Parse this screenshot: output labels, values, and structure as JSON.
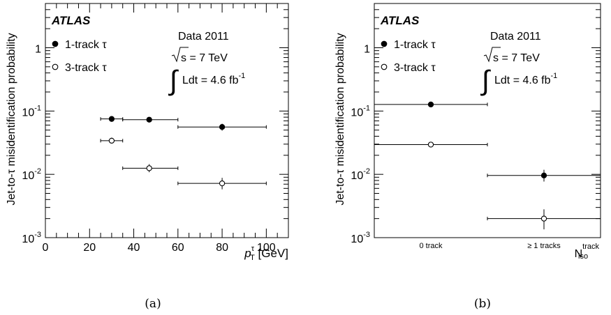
{
  "chart_data": [
    {
      "type": "scatter",
      "caption": "(a)",
      "brand": "ATLAS",
      "ylabel": "Jet-to-τ misidentification probability",
      "xlabel": {
        "main": "p",
        "sup": "τ",
        "sub": "T",
        "unit": " [GeV]"
      },
      "xlim": [
        0,
        110
      ],
      "ylim": [
        0.001,
        5
      ],
      "yscale": "log",
      "xticks": [
        "0",
        "20",
        "40",
        "60",
        "80",
        "100"
      ],
      "yticks": [
        {
          "base": "10",
          "exp": "-3"
        },
        {
          "base": "10",
          "exp": "-2"
        },
        {
          "base": "10",
          "exp": "-1"
        },
        {
          "base": "1",
          "exp": ""
        }
      ],
      "legend": {
        "placement": "top-left",
        "entries": [
          "1-track τ",
          "3-track τ"
        ]
      },
      "info": {
        "line1": "Data 2011",
        "sqrt_s": "s = 7 TeV",
        "lumi": "Ldt = 4.6 fb",
        "lumi_exp": "-1"
      },
      "series": [
        {
          "name": "1-track τ",
          "marker": "filled",
          "points": [
            {
              "x": 30,
              "xlo": 25,
              "xhi": 35,
              "y": 0.075,
              "ylo": 0.071,
              "yhi": 0.079
            },
            {
              "x": 47,
              "xlo": 35,
              "xhi": 60,
              "y": 0.073,
              "ylo": 0.069,
              "yhi": 0.077
            },
            {
              "x": 80,
              "xlo": 60,
              "xhi": 100,
              "y": 0.056,
              "ylo": 0.049,
              "yhi": 0.063
            }
          ]
        },
        {
          "name": "3-track τ",
          "marker": "open",
          "points": [
            {
              "x": 30,
              "xlo": 25,
              "xhi": 35,
              "y": 0.034,
              "ylo": 0.031,
              "yhi": 0.038
            },
            {
              "x": 47,
              "xlo": 35,
              "xhi": 60,
              "y": 0.0125,
              "ylo": 0.0108,
              "yhi": 0.0145
            },
            {
              "x": 80,
              "xlo": 60,
              "xhi": 100,
              "y": 0.0072,
              "ylo": 0.0058,
              "yhi": 0.0088
            }
          ]
        }
      ]
    },
    {
      "type": "scatter",
      "caption": "(b)",
      "brand": "ATLAS",
      "ylabel": "Jet-to-τ misidentification probability",
      "xlabel": {
        "main": "N",
        "sup": "track",
        "sub": "iso"
      },
      "categories": [
        "0 track",
        "≥ 1 tracks"
      ],
      "ylim": [
        0.001,
        5
      ],
      "yscale": "log",
      "yticks": [
        {
          "base": "10",
          "exp": "-3"
        },
        {
          "base": "10",
          "exp": "-2"
        },
        {
          "base": "10",
          "exp": "-1"
        },
        {
          "base": "1",
          "exp": ""
        }
      ],
      "legend": {
        "placement": "top-left",
        "entries": [
          "1-track τ",
          "3-track τ"
        ]
      },
      "info": {
        "line1": "Data 2011",
        "sqrt_s": "s = 7 TeV",
        "lumi": "Ldt = 4.6 fb",
        "lumi_exp": "-1"
      },
      "series": [
        {
          "name": "1-track τ",
          "marker": "filled",
          "values": [
            0.127,
            0.0096
          ],
          "lo": [
            0.123,
            0.0077
          ],
          "hi": [
            0.131,
            0.0118
          ]
        },
        {
          "name": "3-track τ",
          "marker": "open",
          "values": [
            0.0295,
            0.002
          ],
          "lo": [
            0.0285,
            0.00135
          ],
          "hi": [
            0.0305,
            0.0028
          ]
        }
      ]
    }
  ]
}
